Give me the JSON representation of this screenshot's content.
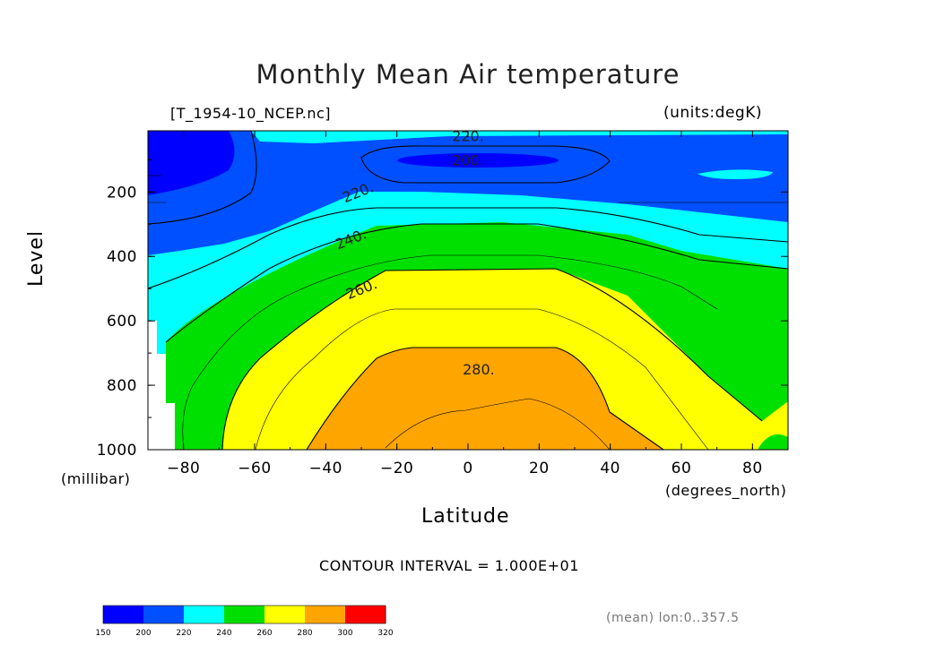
{
  "chart_data": {
    "type": "contour",
    "title": "Monthly Mean Air temperature",
    "dataset": "[T_1954-10_NCEP.nc]",
    "units_label": "(units:degK)",
    "ylabel": "Level",
    "yunit": "(millibar)",
    "xlabel": "Latitude",
    "xunit": "(degrees_north)",
    "contour_interval": "CONTOUR INTERVAL = 1.000E+01",
    "mean_note": "(mean) lon:0..357.5",
    "xlim": [
      -90,
      90
    ],
    "ylim": [
      10,
      1000
    ],
    "x_ticks": [
      -80,
      -60,
      -40,
      -20,
      0,
      20,
      40,
      60,
      80
    ],
    "x_tick_labels": [
      "−80",
      "−60",
      "−40",
      "−20",
      "0",
      "20",
      "40",
      "60",
      "80"
    ],
    "y_ticks": [
      200,
      400,
      600,
      800,
      1000
    ],
    "y_tick_labels": [
      "200",
      "400",
      "600",
      "800",
      "1000"
    ],
    "y_axis_inverted": true,
    "contour_labels": [
      {
        "text": "220.",
        "lat": 0,
        "level": 25
      },
      {
        "text": "200.",
        "lat": 0,
        "level": 100
      },
      {
        "text": "220.",
        "lat": -31,
        "level": 200
      },
      {
        "text": "240.",
        "lat": -33,
        "level": 345
      },
      {
        "text": "260.",
        "lat": -30,
        "level": 500
      },
      {
        "text": "280.",
        "lat": 3,
        "level": 750
      }
    ],
    "colorbar": {
      "levels": [
        "150",
        "200",
        "220",
        "240",
        "260",
        "280",
        "300",
        "320"
      ],
      "colors": [
        "#0000ff",
        "#0050ff",
        "#00ffff",
        "#00e000",
        "#ffff00",
        "#ffa500",
        "#ff0000"
      ]
    },
    "band_colors": {
      "below_200": "#0000ff",
      "200_220": "#0050ff",
      "220_240": "#00ffff",
      "240_260": "#00e000",
      "260_280": "#ffff00",
      "280_300": "#ffa500"
    }
  }
}
